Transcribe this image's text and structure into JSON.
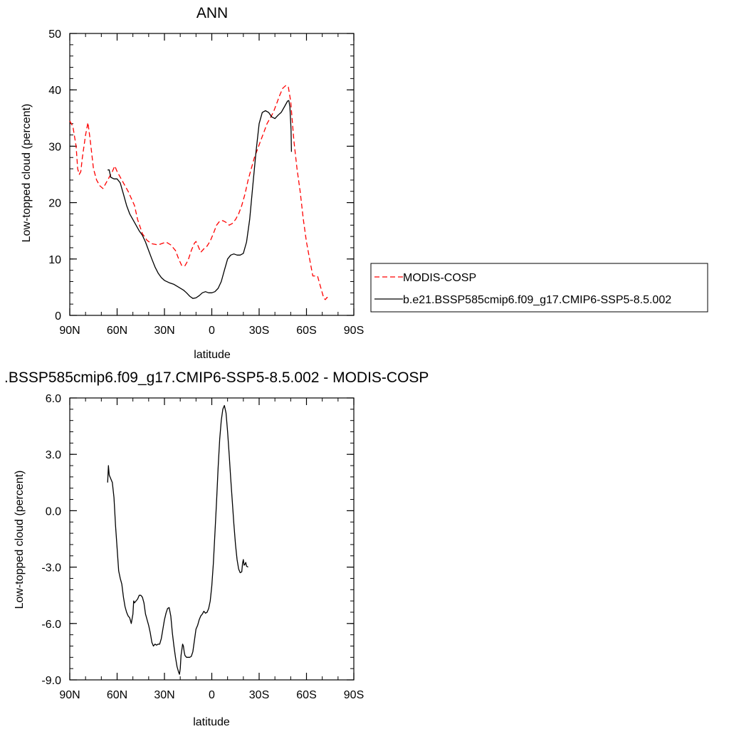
{
  "chart_data": [
    {
      "type": "line",
      "title": "ANN",
      "xlabel": "latitude",
      "ylabel": "Low-topped cloud (percent)",
      "xlim": [
        90,
        -90
      ],
      "ylim": [
        0,
        50
      ],
      "x_ticks": [
        {
          "value": 90,
          "label": "90N"
        },
        {
          "value": 60,
          "label": "60N"
        },
        {
          "value": 30,
          "label": "30N"
        },
        {
          "value": 0,
          "label": "0"
        },
        {
          "value": -30,
          "label": "30S"
        },
        {
          "value": -60,
          "label": "60S"
        },
        {
          "value": -90,
          "label": "90S"
        }
      ],
      "y_ticks": [
        {
          "value": 0,
          "label": "0"
        },
        {
          "value": 10,
          "label": "10"
        },
        {
          "value": 20,
          "label": "20"
        },
        {
          "value": 30,
          "label": "30"
        },
        {
          "value": 40,
          "label": "40"
        },
        {
          "value": 50,
          "label": "50"
        }
      ],
      "grid": false,
      "legend_position": "right",
      "series": [
        {
          "name": "MODIS-COSP",
          "color": "#ff0000",
          "dash": "dashed",
          "points": [
            [
              90,
              34.5
            ],
            [
              88,
              33.5
            ],
            [
              86,
              30
            ],
            [
              85,
              26
            ],
            [
              84,
              25
            ],
            [
              83,
              25.5
            ],
            [
              82,
              28
            ],
            [
              80,
              32
            ],
            [
              78.5,
              34.2
            ],
            [
              77,
              31
            ],
            [
              75,
              26
            ],
            [
              73,
              24
            ],
            [
              71,
              23
            ],
            [
              69,
              22.5
            ],
            [
              67,
              23.5
            ],
            [
              65,
              24.5
            ],
            [
              63,
              25.5
            ],
            [
              61.5,
              26.5
            ],
            [
              60,
              25.5
            ],
            [
              57,
              24
            ],
            [
              53,
              22
            ],
            [
              49,
              19.5
            ],
            [
              47,
              17
            ],
            [
              44,
              14.5
            ],
            [
              41,
              13.3
            ],
            [
              38,
              12.7
            ],
            [
              34,
              12.5
            ],
            [
              31,
              12.8
            ],
            [
              29,
              13
            ],
            [
              26,
              12.5
            ],
            [
              23,
              11.5
            ],
            [
              21,
              10
            ],
            [
              19,
              8.8
            ],
            [
              17,
              8.8
            ],
            [
              15,
              9.8
            ],
            [
              13,
              11.5
            ],
            [
              11,
              12.8
            ],
            [
              10,
              13.1
            ],
            [
              9,
              12.5
            ],
            [
              7,
              11.2
            ],
            [
              5,
              11.8
            ],
            [
              3,
              12.3
            ],
            [
              1,
              13.2
            ],
            [
              -1,
              14.5
            ],
            [
              -3,
              16
            ],
            [
              -5,
              16.7
            ],
            [
              -7,
              16.8
            ],
            [
              -9,
              16.5
            ],
            [
              -11,
              16
            ],
            [
              -13,
              16.3
            ],
            [
              -15,
              17
            ],
            [
              -17,
              18
            ],
            [
              -19,
              19.5
            ],
            [
              -21,
              21.5
            ],
            [
              -23,
              24
            ],
            [
              -25,
              26
            ],
            [
              -27,
              28
            ],
            [
              -29,
              29.5
            ],
            [
              -31,
              31
            ],
            [
              -33,
              32.5
            ],
            [
              -35,
              34
            ],
            [
              -37,
              35
            ],
            [
              -39,
              36
            ],
            [
              -41,
              37.5
            ],
            [
              -43,
              39
            ],
            [
              -45,
              40.3
            ],
            [
              -47,
              40.8
            ],
            [
              -48.5,
              40.5
            ],
            [
              -50,
              38
            ],
            [
              -52,
              31
            ],
            [
              -54,
              26
            ],
            [
              -56,
              22
            ],
            [
              -58,
              17
            ],
            [
              -60,
              13
            ],
            [
              -62,
              10
            ],
            [
              -64,
              7
            ],
            [
              -67,
              7
            ],
            [
              -69,
              5
            ],
            [
              -71,
              3
            ],
            [
              -72,
              2.8
            ],
            [
              -73,
              3.2
            ],
            [
              -74,
              3
            ]
          ]
        },
        {
          "name": "b.e21.BSSP585cmip6.f09_g17.CMIP6-SSP5-8.5.002",
          "color": "#000000",
          "dash": "solid",
          "points": [
            [
              66,
              25.8
            ],
            [
              65,
              25.8
            ],
            [
              64,
              24.5
            ],
            [
              62,
              24.2
            ],
            [
              60,
              24.2
            ],
            [
              58,
              23.5
            ],
            [
              56,
              21.5
            ],
            [
              54,
              19.5
            ],
            [
              52,
              18
            ],
            [
              50,
              17
            ],
            [
              48,
              16
            ],
            [
              46,
              15
            ],
            [
              44,
              14.2
            ],
            [
              42,
              13
            ],
            [
              40,
              11.5
            ],
            [
              38,
              10
            ],
            [
              36,
              8.6
            ],
            [
              34,
              7.5
            ],
            [
              32,
              6.7
            ],
            [
              30,
              6.2
            ],
            [
              27,
              5.8
            ],
            [
              24,
              5.5
            ],
            [
              21,
              5
            ],
            [
              18,
              4.5
            ],
            [
              16,
              4
            ],
            [
              14,
              3.4
            ],
            [
              12,
              3.0
            ],
            [
              10,
              3.1
            ],
            [
              8,
              3.5
            ],
            [
              6,
              4
            ],
            [
              4,
              4.2
            ],
            [
              2,
              4.0
            ],
            [
              0,
              4.0
            ],
            [
              -2,
              4.2
            ],
            [
              -4,
              4.8
            ],
            [
              -6,
              6
            ],
            [
              -8,
              8
            ],
            [
              -10,
              10
            ],
            [
              -12,
              10.7
            ],
            [
              -14,
              10.9
            ],
            [
              -16,
              10.7
            ],
            [
              -18,
              10.7
            ],
            [
              -20,
              11
            ],
            [
              -22,
              13
            ],
            [
              -24,
              17
            ],
            [
              -26,
              23
            ],
            [
              -28,
              29
            ],
            [
              -30,
              34
            ],
            [
              -32,
              36
            ],
            [
              -34,
              36.3
            ],
            [
              -36,
              36
            ],
            [
              -38,
              35.2
            ],
            [
              -40,
              34.9
            ],
            [
              -42,
              35.5
            ],
            [
              -44,
              36
            ],
            [
              -46,
              37
            ],
            [
              -48,
              38
            ],
            [
              -48.8,
              38.1
            ],
            [
              -49.5,
              37
            ],
            [
              -50.2,
              33
            ],
            [
              -50.5,
              29
            ]
          ]
        }
      ]
    },
    {
      "type": "line",
      "title": ".BSSP585cmip6.f09_g17.CMIP6-SSP5-8.5.002 - MODIS-COSP",
      "xlabel": "latitude",
      "ylabel": "Low-topped cloud (percent)",
      "xlim": [
        90,
        -90
      ],
      "ylim": [
        -9,
        6
      ],
      "x_ticks": [
        {
          "value": 90,
          "label": "90N"
        },
        {
          "value": 60,
          "label": "60N"
        },
        {
          "value": 30,
          "label": "30N"
        },
        {
          "value": 0,
          "label": "0"
        },
        {
          "value": -30,
          "label": "30S"
        },
        {
          "value": -60,
          "label": "60S"
        },
        {
          "value": -90,
          "label": "90S"
        }
      ],
      "y_ticks": [
        {
          "value": -9,
          "label": "-9.0"
        },
        {
          "value": -6,
          "label": "-6.0"
        },
        {
          "value": -3,
          "label": "-3.0"
        },
        {
          "value": 0,
          "label": "0.0"
        },
        {
          "value": 3,
          "label": "3.0"
        },
        {
          "value": 6,
          "label": "6.0"
        }
      ],
      "grid": false,
      "series": [
        {
          "color": "#000000",
          "dash": "solid",
          "points": [
            [
              66,
              1.5
            ],
            [
              65.5,
              2.4
            ],
            [
              65,
              1.9
            ],
            [
              64,
              1.7
            ],
            [
              63,
              1.5
            ],
            [
              62,
              0.7
            ],
            [
              61,
              -0.8
            ],
            [
              60,
              -2.0
            ],
            [
              59,
              -3.2
            ],
            [
              58,
              -3.6
            ],
            [
              57,
              -3.9
            ],
            [
              56,
              -4.6
            ],
            [
              55,
              -5.1
            ],
            [
              54,
              -5.4
            ],
            [
              53,
              -5.6
            ],
            [
              52,
              -5.7
            ],
            [
              51,
              -6.0
            ],
            [
              50,
              -5.5
            ],
            [
              49.5,
              -4.8
            ],
            [
              49,
              -4.9
            ],
            [
              48,
              -4.8
            ],
            [
              47,
              -4.7
            ],
            [
              46,
              -4.5
            ],
            [
              45,
              -4.5
            ],
            [
              44,
              -4.6
            ],
            [
              43,
              -4.9
            ],
            [
              42,
              -5.5
            ],
            [
              41,
              -5.8
            ],
            [
              40,
              -6.1
            ],
            [
              39,
              -6.5
            ],
            [
              38,
              -7.0
            ],
            [
              37,
              -7.2
            ],
            [
              36,
              -7.1
            ],
            [
              35,
              -7.15
            ],
            [
              34,
              -7.1
            ],
            [
              33,
              -7.1
            ],
            [
              32,
              -6.8
            ],
            [
              31,
              -6.3
            ],
            [
              30,
              -5.8
            ],
            [
              29,
              -5.45
            ],
            [
              28,
              -5.2
            ],
            [
              27,
              -5.15
            ],
            [
              26,
              -5.6
            ],
            [
              25,
              -6.5
            ],
            [
              24,
              -7.2
            ],
            [
              23,
              -7.8
            ],
            [
              22,
              -8.3
            ],
            [
              21,
              -8.6
            ],
            [
              20.5,
              -8.7
            ],
            [
              20,
              -8.4
            ],
            [
              19.5,
              -7.7
            ],
            [
              19,
              -7.4
            ],
            [
              18.5,
              -7.1
            ],
            [
              18,
              -7.2
            ],
            [
              17.5,
              -7.5
            ],
            [
              17,
              -7.7
            ],
            [
              16,
              -7.8
            ],
            [
              15,
              -7.8
            ],
            [
              14,
              -7.8
            ],
            [
              13,
              -7.75
            ],
            [
              12,
              -7.5
            ],
            [
              11,
              -6.9
            ],
            [
              10,
              -6.3
            ],
            [
              9,
              -6.1
            ],
            [
              8,
              -5.8
            ],
            [
              7,
              -5.6
            ],
            [
              6,
              -5.5
            ],
            [
              5,
              -5.35
            ],
            [
              4,
              -5.45
            ],
            [
              3,
              -5.4
            ],
            [
              2,
              -5.2
            ],
            [
              1,
              -4.8
            ],
            [
              0,
              -4.0
            ],
            [
              -1,
              -2.8
            ],
            [
              -2,
              -1.2
            ],
            [
              -3,
              0.5
            ],
            [
              -4,
              2.3
            ],
            [
              -5,
              3.8
            ],
            [
              -6,
              4.8
            ],
            [
              -7,
              5.4
            ],
            [
              -8,
              5.6
            ],
            [
              -9,
              5.2
            ],
            [
              -10,
              4.2
            ],
            [
              -11,
              3.0
            ],
            [
              -12,
              1.7
            ],
            [
              -13,
              0.5
            ],
            [
              -14,
              -0.7
            ],
            [
              -15,
              -1.8
            ],
            [
              -16,
              -2.6
            ],
            [
              -17,
              -3.1
            ],
            [
              -18,
              -3.3
            ],
            [
              -19,
              -3.25
            ],
            [
              -19.5,
              -2.8
            ],
            [
              -20,
              -2.6
            ],
            [
              -20.5,
              -2.9
            ],
            [
              -21,
              -2.85
            ],
            [
              -21.5,
              -2.75
            ],
            [
              -22,
              -2.95
            ],
            [
              -23,
              -3.0
            ]
          ]
        }
      ]
    }
  ]
}
